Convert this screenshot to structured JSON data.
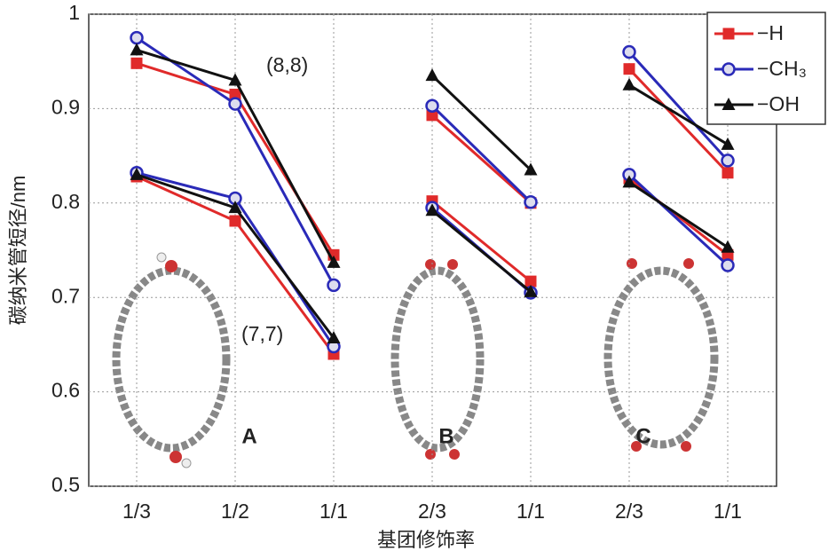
{
  "chart_data": {
    "type": "line",
    "ylabel": "碳纳米管短径/nm",
    "xlabel": "基团修饰率",
    "ylim": [
      0.5,
      1
    ],
    "yticks": [
      0.5,
      0.6,
      0.7,
      0.8,
      0.9,
      1
    ],
    "grid": true,
    "legend": "upper right",
    "panels": [
      {
        "label": "A",
        "categories": [
          "1/3",
          "1/2",
          "1/1"
        ]
      },
      {
        "label": "B",
        "categories": [
          "2/3",
          "1/1"
        ]
      },
      {
        "label": "C",
        "categories": [
          "2/3",
          "1/1"
        ]
      }
    ],
    "annotations": [
      "(8,8)",
      "(7,7)"
    ],
    "series": [
      {
        "name": "−H",
        "color": "#e02a2a",
        "marker": "square",
        "values": [
          [
            [
              0.948,
              0.915,
              0.745
            ],
            [
              0.828,
              0.781,
              0.64
            ]
          ],
          [
            [
              0.893,
              0.8
            ],
            [
              0.802,
              0.717
            ]
          ],
          [
            [
              0.942,
              0.832
            ],
            [
              0.826,
              0.745
            ]
          ]
        ]
      },
      {
        "name": "−CH₃",
        "color": "#2a2ab8",
        "marker": "circle",
        "values": [
          [
            [
              0.975,
              0.905,
              0.713
            ],
            [
              0.832,
              0.805,
              0.648
            ]
          ],
          [
            [
              0.903,
              0.801
            ],
            [
              0.795,
              0.705
            ]
          ],
          [
            [
              0.96,
              0.845
            ],
            [
              0.83,
              0.734
            ]
          ]
        ]
      },
      {
        "name": "−OH",
        "color": "#111111",
        "marker": "triangle",
        "values": [
          [
            [
              0.962,
              0.93,
              0.737
            ],
            [
              0.83,
              0.795,
              0.657
            ]
          ],
          [
            [
              0.935,
              0.835
            ],
            [
              0.792,
              0.706
            ]
          ],
          [
            [
              0.925,
              0.862
            ],
            [
              0.822,
              0.753
            ]
          ]
        ]
      }
    ]
  }
}
